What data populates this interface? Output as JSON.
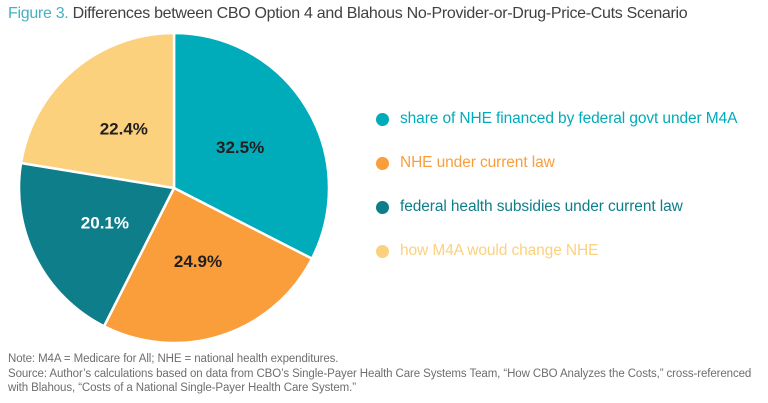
{
  "figure": {
    "label": "Figure 3.",
    "title": " Differences between CBO Option 4 and Blahous No-Provider-or-Drug-Price-Cuts Scenario"
  },
  "chart_data": {
    "type": "pie",
    "title": "Differences between CBO Option 4 and Blahous No-Provider-or-Drug-Price-Cuts Scenario",
    "start_angle_deg": 0,
    "direction": "clockwise",
    "legend_position": "right",
    "slices": [
      {
        "label": "share of NHE financed by federal govt under M4A",
        "value": 32.5,
        "display": "32.5%",
        "color": "#00ACB9",
        "label_color": "#231F20"
      },
      {
        "label": "NHE under current law",
        "value": 24.9,
        "display": "24.9%",
        "color": "#F99E3B",
        "label_color": "#231F20"
      },
      {
        "label": "federal health subsidies under current law",
        "value": 20.1,
        "display": "20.1%",
        "color": "#0E7E8A",
        "label_color": "#FFFFFF"
      },
      {
        "label": "how M4A would change NHE",
        "value": 22.4,
        "display": "22.4%",
        "color": "#FBD17E",
        "label_color": "#231F20"
      }
    ]
  },
  "notes": {
    "note": "Note: M4A = Medicare for All; NHE = national health expenditures.",
    "source": "Source: Author’s calculations based on data from CBO’s Single-Payer Health Care Systems Team, “How CBO Analyzes the Costs,” cross-referenced with Blahous, “Costs of a National Single-Payer Health Care System.”"
  }
}
